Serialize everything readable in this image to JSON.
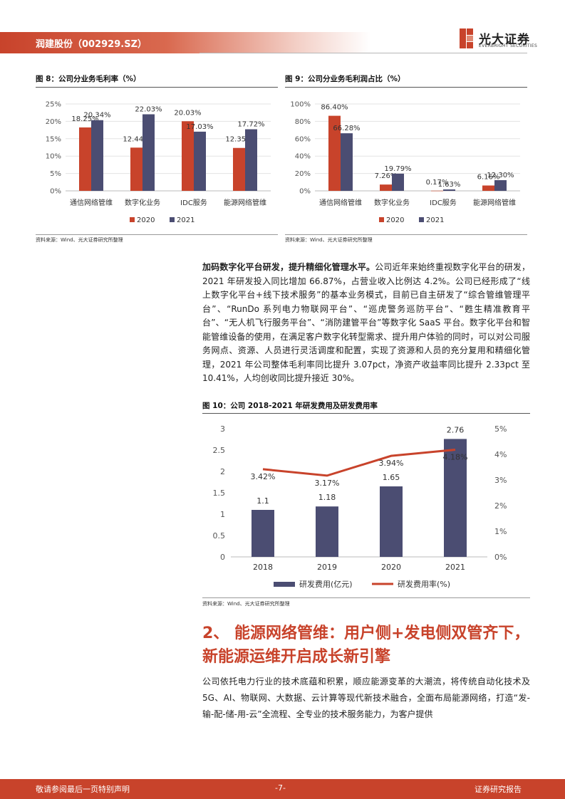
{
  "header": {
    "title": "润建股份（002929.SZ）",
    "logo_cn": "光大证券",
    "logo_en": "EVERBRIGHT SECURITIES"
  },
  "figures": [
    {
      "title": "图 8：公司分业务毛利率（%）",
      "source": "资料来源：Wind、光大证券研究所整理"
    },
    {
      "title": "图 9：公司分业务毛利润占比（%）",
      "source": "资料来源：Wind、光大证券研究所整理"
    },
    {
      "title": "图 10：公司 2018-2021 年研发费用及研发费用率",
      "source": "资料来源：Wind、光大证券研究所整理"
    }
  ],
  "paragraph1": {
    "lead": "加码数字化平台研发，提升精细化管理水平。",
    "body": "公司近年来始终重视数字化平台的研发，2021 年研发投入同比增加 66.87%，占营业收入比例达 4.2%。公司已经形成了“线上数字化平台+线下技术服务”的基本业务模式，目前已自主研发了“综合管维管理平台”、“RunDo 系列电力物联网平台”、“巡虎警务巡防平台”、“甦生精准教育平台”、“无人机飞行服务平台”、“消防建管平台”等数字化 SaaS 平台。数字化平台和智能管维设备的使用，在满足客户数字化转型需求、提升用户体验的同时，可以对公司服务网点、资源、人员进行灵活调度和配置，实现了资源和人员的充分复用和精细化管理，2021 年公司整体毛利率同比提升 3.07pct，净资产收益率同比提升 2.33pct 至 10.41%，人均创收同比提升接近 30%。"
  },
  "section_heading": "2、 能源网络管维：用户侧+发电侧双管齐下，新能源运维开启成长新引擎",
  "paragraph2": "公司依托电力行业的技术底蕴和积累，顺应能源变革的大潮流，将传统自动化技术及 5G、AI、物联网、大数据、云计算等现代新技术融合，全面布局能源网络，打造“发-输-配-储-用-云”全流程、全专业的技术服务能力，为客户提供",
  "footer": {
    "left": "敬请参阅最后一页特别声明",
    "center": "-7-",
    "right": "证券研究报告"
  },
  "colors": {
    "brand": "#c8432b",
    "series_2020": "#c8432b",
    "series_2021": "#4b4d72"
  },
  "chart_data": [
    {
      "type": "bar",
      "categories": [
        "通信网络管维",
        "数字化业务",
        "IDC服务",
        "能源网络管维"
      ],
      "series": [
        {
          "name": "2020",
          "values": [
            18.25,
            12.44,
            20.03,
            12.35
          ],
          "labels": [
            "18.25%",
            "12.44%",
            "20.03%",
            "12.35%"
          ]
        },
        {
          "name": "2021",
          "values": [
            20.34,
            22.03,
            17.03,
            17.72
          ],
          "labels": [
            "20.34%",
            "22.03%",
            "17.03%",
            "17.72%"
          ]
        }
      ],
      "yticks": [
        "0%",
        "5%",
        "10%",
        "15%",
        "20%",
        "25%"
      ],
      "ylim": [
        0,
        25
      ],
      "legend": "bottom"
    },
    {
      "type": "bar",
      "categories": [
        "通信网络管维",
        "数字化业务",
        "IDC服务",
        "能源网络管维"
      ],
      "series": [
        {
          "name": "2020",
          "values": [
            86.4,
            7.26,
            0.17,
            6.16
          ],
          "labels": [
            "86.40%",
            "7.26%",
            "0.17%",
            "6.16%"
          ]
        },
        {
          "name": "2021",
          "values": [
            66.28,
            19.79,
            1.63,
            12.3
          ],
          "labels": [
            "66.28%",
            "19.79%",
            "1.63%",
            "12.30%"
          ]
        }
      ],
      "yticks": [
        "0%",
        "20%",
        "40%",
        "60%",
        "80%",
        "100%"
      ],
      "ylim": [
        0,
        100
      ],
      "legend": "bottom"
    },
    {
      "type": "bar+line",
      "categories": [
        "2018",
        "2019",
        "2020",
        "2021"
      ],
      "bar": {
        "name": "研发费用(亿元)",
        "values": [
          1.1,
          1.18,
          1.65,
          2.76
        ],
        "labels": [
          "1.1",
          "1.18",
          "1.65",
          "2.76"
        ]
      },
      "line": {
        "name": "研发费用率(%)",
        "values": [
          3.42,
          3.17,
          3.94,
          4.18
        ],
        "labels": [
          "3.42%",
          "3.17%",
          "3.94%",
          "4.18%"
        ]
      },
      "y_left_ticks": [
        "0",
        "0.5",
        "1",
        "1.5",
        "2",
        "2.5",
        "3"
      ],
      "y_left_lim": [
        0,
        3
      ],
      "y_right_ticks": [
        "0%",
        "1%",
        "2%",
        "3%",
        "4%",
        "5%"
      ],
      "y_right_lim": [
        0,
        5
      ],
      "legend": "bottom"
    }
  ]
}
